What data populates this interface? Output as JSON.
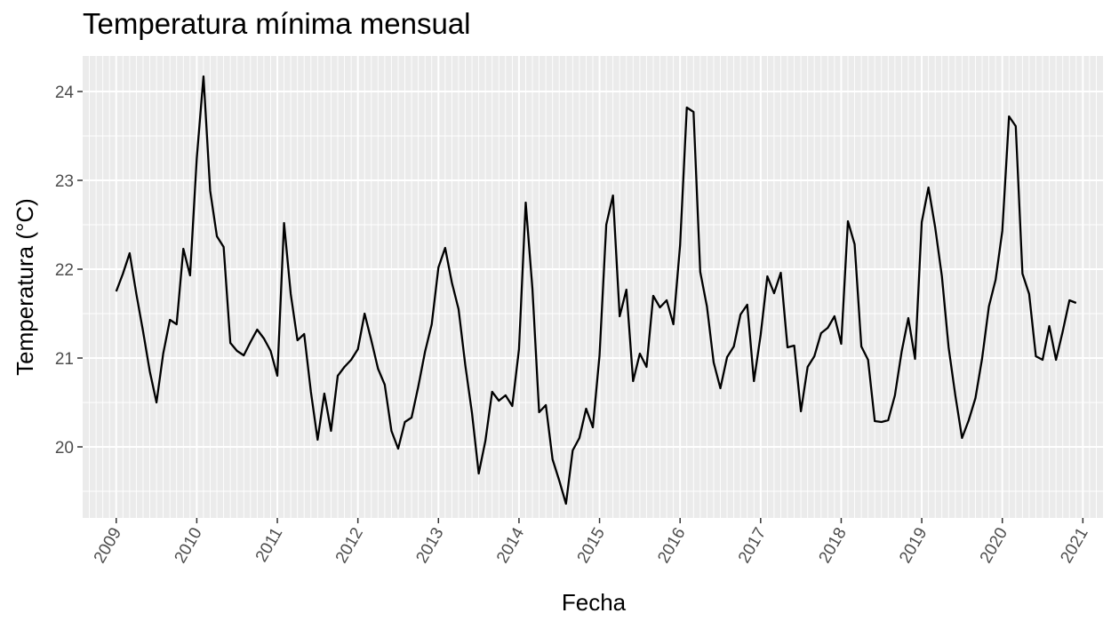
{
  "chart_data": {
    "type": "line",
    "title": "Temperatura mínima mensual",
    "xlabel": "Fecha",
    "ylabel": "Temperatura (°C)",
    "x_tick_labels": [
      "2009",
      "2010",
      "2011",
      "2012",
      "2013",
      "2014",
      "2015",
      "2016",
      "2017",
      "2018",
      "2019",
      "2020",
      "2021"
    ],
    "y_tick_labels": [
      "20",
      "21",
      "22",
      "23",
      "24"
    ],
    "ylim": [
      19.2,
      24.4
    ],
    "xlim": [
      "2008-08",
      "2021-04"
    ],
    "grid": true,
    "colors": {
      "panel": "#ebebeb",
      "grid": "#ffffff",
      "line": "#000000",
      "tick_text": "#4d4d4d"
    },
    "series": [
      {
        "x": [
          "2009-01",
          "2009-02",
          "2009-03",
          "2009-04",
          "2009-05",
          "2009-06",
          "2009-07",
          "2009-08",
          "2009-09",
          "2009-10",
          "2009-11",
          "2009-12",
          "2010-01",
          "2010-02",
          "2010-03",
          "2010-04",
          "2010-05",
          "2010-06",
          "2010-07",
          "2010-08",
          "2010-09",
          "2010-10",
          "2010-11",
          "2010-12",
          "2011-01",
          "2011-02",
          "2011-03",
          "2011-04",
          "2011-05",
          "2011-06",
          "2011-07",
          "2011-08",
          "2011-09",
          "2011-10",
          "2011-11",
          "2011-12",
          "2012-01",
          "2012-02",
          "2012-03",
          "2012-04",
          "2012-05",
          "2012-06",
          "2012-07",
          "2012-08",
          "2012-09",
          "2012-10",
          "2012-11",
          "2012-12",
          "2013-01",
          "2013-02",
          "2013-03",
          "2013-04",
          "2013-05",
          "2013-06",
          "2013-07",
          "2013-08",
          "2013-09",
          "2013-10",
          "2013-11",
          "2013-12",
          "2014-01",
          "2014-02",
          "2014-03",
          "2014-04",
          "2014-05",
          "2014-06",
          "2014-07",
          "2014-08",
          "2014-09",
          "2014-10",
          "2014-11",
          "2014-12",
          "2015-01",
          "2015-02",
          "2015-03",
          "2015-04",
          "2015-05",
          "2015-06",
          "2015-07",
          "2015-08",
          "2015-09",
          "2015-10",
          "2015-11",
          "2015-12",
          "2016-01",
          "2016-02",
          "2016-03",
          "2016-04",
          "2016-05",
          "2016-06",
          "2016-07",
          "2016-08",
          "2016-09",
          "2016-10",
          "2016-11",
          "2016-12",
          "2017-01",
          "2017-02",
          "2017-03",
          "2017-04",
          "2017-05",
          "2017-06",
          "2017-07",
          "2017-08",
          "2017-09",
          "2017-10",
          "2017-11",
          "2017-12",
          "2018-01",
          "2018-02",
          "2018-03",
          "2018-04",
          "2018-05",
          "2018-06",
          "2018-07",
          "2018-08",
          "2018-09",
          "2018-10",
          "2018-11",
          "2018-12",
          "2019-01",
          "2019-02",
          "2019-03",
          "2019-04",
          "2019-05",
          "2019-06",
          "2019-07",
          "2019-08",
          "2019-09",
          "2019-10",
          "2019-11",
          "2019-12",
          "2020-01",
          "2020-02",
          "2020-03",
          "2020-04",
          "2020-05",
          "2020-06",
          "2020-07",
          "2020-08",
          "2020-09",
          "2020-10",
          "2020-11",
          "2020-12"
        ],
        "y": [
          21.75,
          21.95,
          22.18,
          21.72,
          21.3,
          20.85,
          20.5,
          21.05,
          21.43,
          21.38,
          22.23,
          21.93,
          23.25,
          24.17,
          22.88,
          22.37,
          22.25,
          21.17,
          21.08,
          21.03,
          21.18,
          21.32,
          21.22,
          21.08,
          20.8,
          22.52,
          21.72,
          21.2,
          21.27,
          20.62,
          20.08,
          20.6,
          20.18,
          20.8,
          20.9,
          20.98,
          21.1,
          21.5,
          21.2,
          20.88,
          20.7,
          20.18,
          19.98,
          20.28,
          20.33,
          20.68,
          21.07,
          21.38,
          22.02,
          22.24,
          21.85,
          21.55,
          20.92,
          20.38,
          19.7,
          20.07,
          20.62,
          20.52,
          20.58,
          20.46,
          21.1,
          22.75,
          21.78,
          20.39,
          20.47,
          19.86,
          19.62,
          19.36,
          19.96,
          20.1,
          20.43,
          20.22,
          21.03,
          22.5,
          22.83,
          21.47,
          21.77,
          20.74,
          21.05,
          20.9,
          21.7,
          21.57,
          21.65,
          21.38,
          22.27,
          23.82,
          23.77,
          21.97,
          21.58,
          20.95,
          20.66,
          21.01,
          21.13,
          21.49,
          21.6,
          20.74,
          21.26,
          21.92,
          21.73,
          21.96,
          21.12,
          21.14,
          20.4,
          20.9,
          21.02,
          21.28,
          21.34,
          21.47,
          21.16,
          22.54,
          22.28,
          21.13,
          20.98,
          20.29,
          20.28,
          20.3,
          20.58,
          21.07,
          21.45,
          20.99,
          22.53,
          22.92,
          22.47,
          21.92,
          21.12,
          20.58,
          20.1,
          20.3,
          20.55,
          21.0,
          21.58,
          21.88,
          22.43,
          23.72,
          23.61,
          21.95,
          21.72,
          21.02,
          20.98,
          21.36,
          20.98,
          21.3,
          21.65,
          21.62
        ]
      }
    ]
  }
}
